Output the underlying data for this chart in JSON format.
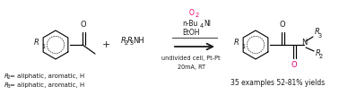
{
  "bg_color": "#ffffff",
  "text_color": "#1a1a1a",
  "pink_color": "#e8006e",
  "fig_width": 3.78,
  "fig_height": 1.06,
  "dpi": 100,
  "yield_text": "35 examples 52-81% yields",
  "footnote1": "R₂= aliphatic, aromatic, H",
  "footnote2": "R₃= aliphatic, aromatic, H",
  "font_size_chem": 6.0,
  "font_size_sub": 4.8,
  "font_size_reagent": 5.5,
  "font_size_footnote": 5.0,
  "font_size_yield": 5.5,
  "font_size_plus": 8.0
}
